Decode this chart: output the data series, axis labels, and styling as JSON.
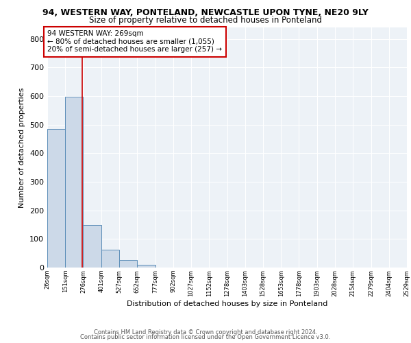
{
  "title": "94, WESTERN WAY, PONTELAND, NEWCASTLE UPON TYNE, NE20 9LY",
  "subtitle": "Size of property relative to detached houses in Ponteland",
  "xlabel": "Distribution of detached houses by size in Ponteland",
  "ylabel": "Number of detached properties",
  "bar_edges": [
    26,
    151,
    276,
    401,
    527,
    652,
    777,
    902,
    1027,
    1152,
    1278,
    1403,
    1528,
    1653,
    1778,
    1903,
    2028,
    2154,
    2279,
    2404,
    2529
  ],
  "bar_heights": [
    485,
    597,
    150,
    63,
    27,
    10,
    0,
    0,
    0,
    0,
    0,
    0,
    0,
    0,
    0,
    0,
    0,
    0,
    0,
    0
  ],
  "bar_color": "#ccd9e8",
  "bar_edge_color": "#5b8db8",
  "vline_x": 269,
  "vline_color": "#cc0000",
  "annotation_line1": "94 WESTERN WAY: 269sqm",
  "annotation_line2": "← 80% of detached houses are smaller (1,055)",
  "annotation_line3": "20% of semi-detached houses are larger (257) →",
  "annotation_box_color": "#cc0000",
  "ylim": [
    0,
    840
  ],
  "yticks": [
    0,
    100,
    200,
    300,
    400,
    500,
    600,
    700,
    800
  ],
  "xtick_labels": [
    "26sqm",
    "151sqm",
    "276sqm",
    "401sqm",
    "527sqm",
    "652sqm",
    "777sqm",
    "902sqm",
    "1027sqm",
    "1152sqm",
    "1278sqm",
    "1403sqm",
    "1528sqm",
    "1653sqm",
    "1778sqm",
    "1903sqm",
    "2028sqm",
    "2154sqm",
    "2279sqm",
    "2404sqm",
    "2529sqm"
  ],
  "footer_line1": "Contains HM Land Registry data © Crown copyright and database right 2024.",
  "footer_line2": "Contains public sector information licensed under the Open Government Licence v3.0.",
  "background_color": "#edf2f7",
  "grid_color": "#ffffff",
  "title_fontsize": 9,
  "subtitle_fontsize": 8.5,
  "ylabel_fontsize": 8,
  "xlabel_fontsize": 8,
  "ytick_fontsize": 8,
  "xtick_fontsize": 6,
  "annotation_fontsize": 7.5,
  "footer_fontsize": 6
}
